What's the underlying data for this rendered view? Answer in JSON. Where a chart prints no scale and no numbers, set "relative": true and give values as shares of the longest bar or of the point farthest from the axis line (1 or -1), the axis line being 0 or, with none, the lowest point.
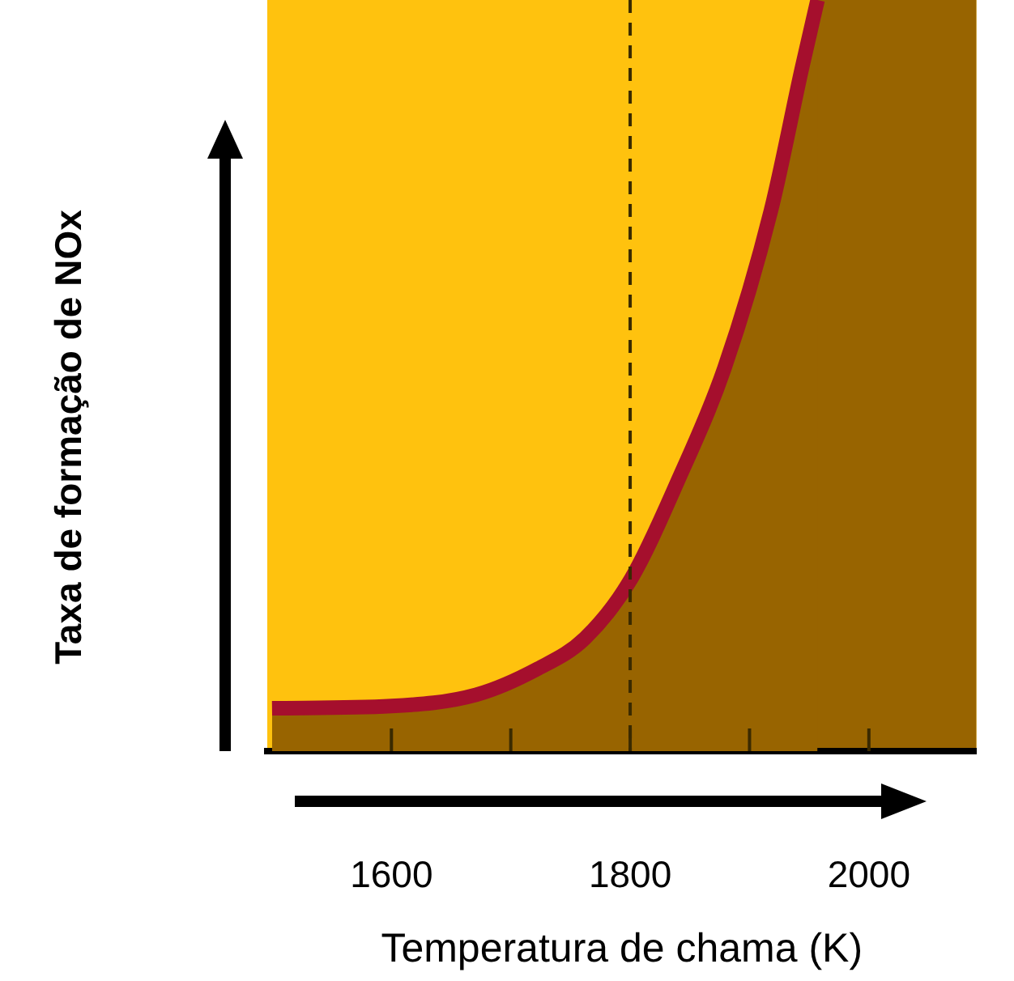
{
  "chart_data": {
    "type": "area",
    "relative": true,
    "xlabel": "Temperatura de chama (K)",
    "ylabel": "Taxa de formação de NOx",
    "x": [
      1500,
      1600,
      1671,
      1723,
      1762,
      1801,
      1840,
      1879,
      1918,
      1944,
      1957
    ],
    "series": [
      {
        "color": "#986400",
        "values": [
          0.057,
          0.06,
          0.075,
          0.11,
          0.15,
          0.23,
          0.36,
          0.51,
          0.72,
          0.91,
          1
        ]
      }
    ],
    "xlim": [
      1496,
      2090
    ],
    "xticks": [
      1600,
      {
        "value": 1700,
        "label": null
      },
      1800,
      {
        "value": 1900,
        "label": null
      },
      2000
    ],
    "ref_lines": [
      {
        "axis": "x",
        "value": 1800,
        "color": "#3a2a00",
        "line_style": "dashed"
      }
    ],
    "bands": [
      {
        "axis": "x",
        "from": 1957,
        "to": 2090,
        "color": "#986400"
      }
    ],
    "grid": false,
    "legend": false
  }
}
